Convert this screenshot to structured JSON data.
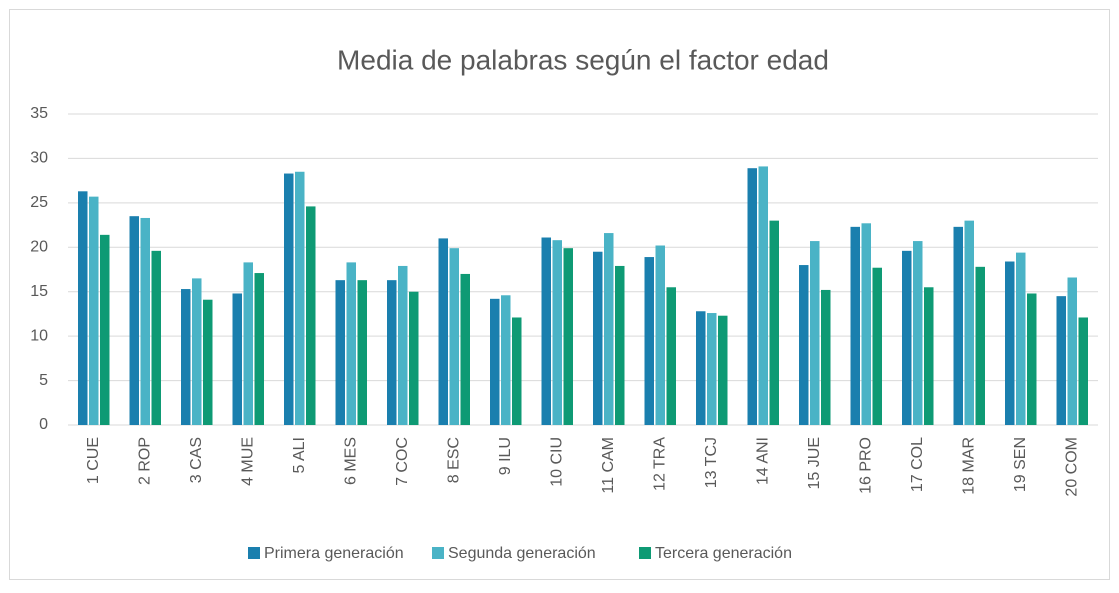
{
  "chart_data": {
    "type": "bar",
    "title": "Media de palabras según el factor edad",
    "categories": [
      "1 CUE",
      "2 ROP",
      "3 CAS",
      "4 MUE",
      "5 ALI",
      "6 MES",
      "7 COC",
      "8 ESC",
      "9 ILU",
      "10 CIU",
      "11 CAM",
      "12 TRA",
      "13 TCJ",
      "14 ANI",
      "15 JUE",
      "16 PRO",
      "17 COL",
      "18 MAR",
      "19 SEN",
      "20 COM"
    ],
    "series": [
      {
        "name": "Primera generación",
        "color": "#1a7fae",
        "values": [
          26.3,
          23.5,
          15.3,
          14.8,
          28.3,
          16.3,
          16.3,
          21.0,
          14.2,
          21.1,
          19.5,
          18.9,
          12.8,
          28.9,
          18.0,
          22.3,
          19.6,
          22.3,
          18.4,
          14.5
        ]
      },
      {
        "name": "Segunda generación",
        "color": "#4ab3c6",
        "values": [
          25.7,
          23.3,
          16.5,
          18.3,
          28.5,
          18.3,
          17.9,
          19.9,
          14.6,
          20.8,
          21.6,
          20.2,
          12.6,
          29.1,
          20.7,
          22.7,
          20.7,
          23.0,
          19.4,
          16.6
        ]
      },
      {
        "name": "Tercera generación",
        "color": "#0e9a74",
        "values": [
          21.4,
          19.6,
          14.1,
          17.1,
          24.6,
          16.3,
          15.0,
          17.0,
          12.1,
          19.9,
          17.9,
          15.5,
          12.3,
          23.0,
          15.2,
          17.7,
          15.5,
          17.8,
          14.8,
          12.1
        ]
      }
    ],
    "ylim": [
      0,
      35
    ],
    "yticks": [
      0,
      5,
      10,
      15,
      20,
      25,
      30,
      35
    ],
    "grid": true,
    "legend": "bottom"
  }
}
